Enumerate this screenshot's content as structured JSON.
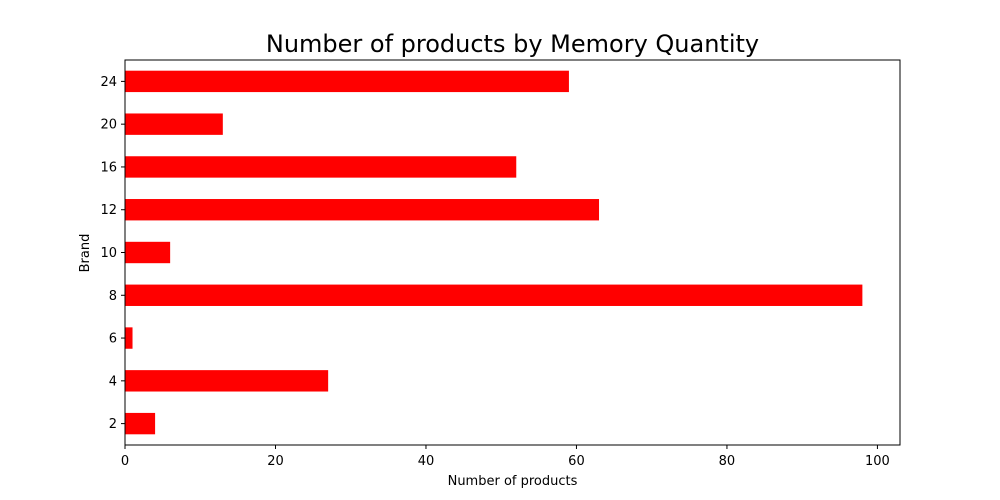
{
  "chart_data": {
    "type": "bar",
    "orientation": "horizontal",
    "title": "Number of products by Memory Quantity",
    "xlabel": "Number of products",
    "ylabel": "Brand",
    "categories": [
      "2",
      "4",
      "6",
      "8",
      "10",
      "12",
      "16",
      "20",
      "24"
    ],
    "values": [
      4,
      27,
      1,
      98,
      6,
      63,
      52,
      13,
      59
    ],
    "xlim": [
      0,
      103
    ],
    "xticks": [
      0,
      20,
      40,
      60,
      80,
      100
    ],
    "grid": false,
    "legend": false,
    "colors": {
      "bar": "#ff0000",
      "axis": "#000000",
      "background": "#ffffff"
    }
  }
}
